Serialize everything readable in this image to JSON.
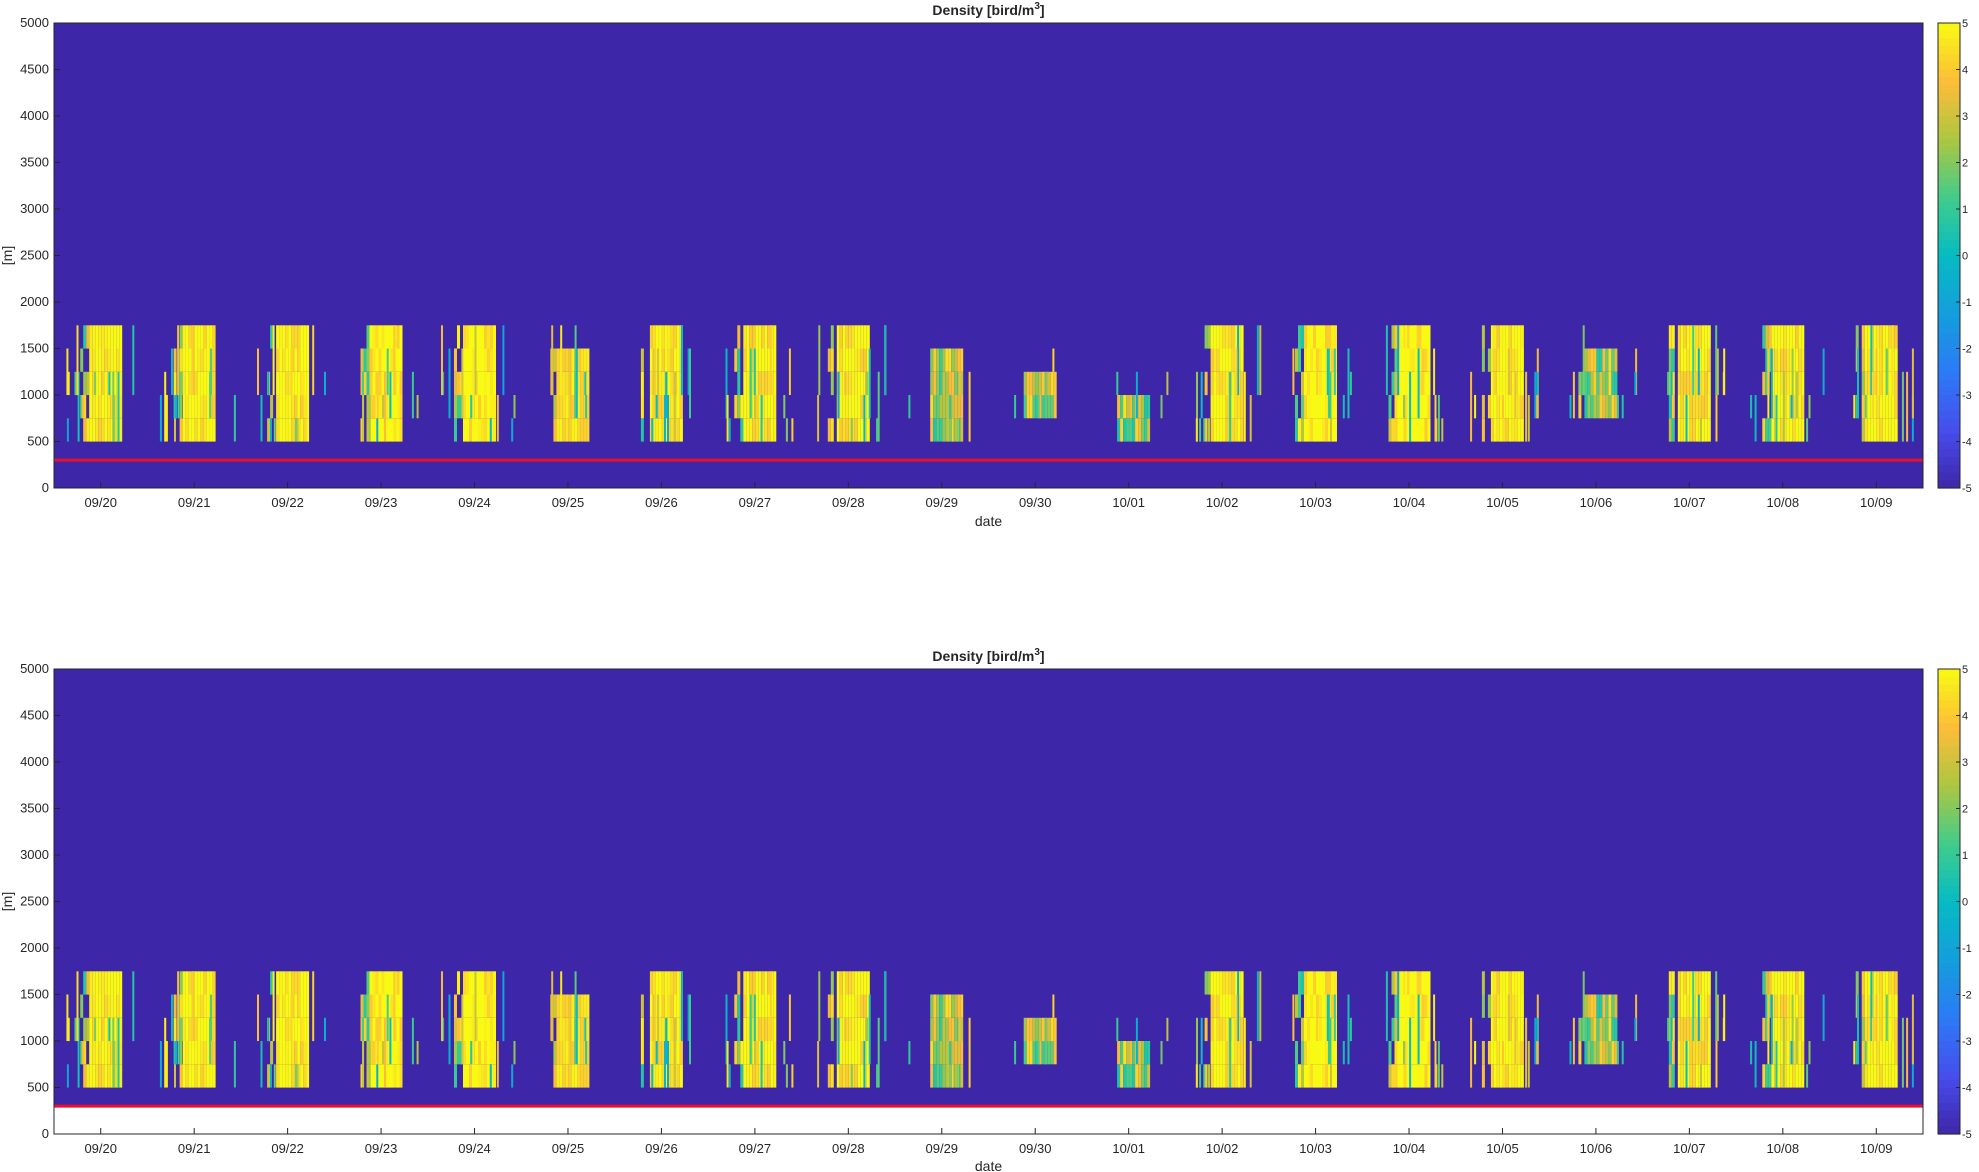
{
  "chart_data": [
    {
      "type": "heatmap",
      "title": "Density [bird/m",
      "title_sup": "3",
      "title_end": "]",
      "xlabel": "date",
      "ylabel": "[m]",
      "ylim": [
        0,
        5000
      ],
      "yticks": [
        0,
        500,
        1000,
        1500,
        2000,
        2500,
        3000,
        3500,
        4000,
        4500,
        5000
      ],
      "xlim": [
        "09/19 12:00",
        "10/09 12:00"
      ],
      "xticks": [
        "09/20",
        "09/21",
        "09/22",
        "09/23",
        "09/24",
        "09/25",
        "09/26",
        "09/27",
        "09/28",
        "09/29",
        "09/30",
        "10/01",
        "10/02",
        "10/03",
        "10/04",
        "10/05",
        "10/06",
        "10/07",
        "10/08",
        "10/09"
      ],
      "colorbar": {
        "range": [
          -5,
          5
        ],
        "ticks": [
          5,
          4,
          3,
          2,
          1,
          0,
          -1,
          -2,
          -3,
          -4,
          -5
        ],
        "colormap": "parula",
        "background_color": "#3e26a8"
      },
      "reference_line": {
        "altitude": 300,
        "color": "#e8112d"
      },
      "grid": false,
      "bottom_gap_white": false,
      "nightly_density": [
        {
          "date": "09/19",
          "intensity": 0.95,
          "top": 1750,
          "bottom": 500
        },
        {
          "date": "09/20",
          "intensity": 0.95,
          "top": 1750,
          "bottom": 500
        },
        {
          "date": "09/21",
          "intensity": 0.95,
          "top": 1750,
          "bottom": 500
        },
        {
          "date": "09/22",
          "intensity": 0.9,
          "top": 1750,
          "bottom": 500
        },
        {
          "date": "09/23",
          "intensity": 0.9,
          "top": 1750,
          "bottom": 500
        },
        {
          "date": "09/24",
          "intensity": 0.5,
          "top": 1500,
          "bottom": 500
        },
        {
          "date": "09/25",
          "intensity": 0.85,
          "top": 1750,
          "bottom": 500
        },
        {
          "date": "09/26",
          "intensity": 0.85,
          "top": 1750,
          "bottom": 500
        },
        {
          "date": "09/27",
          "intensity": 0.95,
          "top": 1750,
          "bottom": 500
        },
        {
          "date": "09/28",
          "intensity": 0.3,
          "top": 1500,
          "bottom": 500
        },
        {
          "date": "09/29",
          "intensity": 0.1,
          "top": 1250,
          "bottom": 750
        },
        {
          "date": "09/30",
          "intensity": 0.15,
          "top": 1000,
          "bottom": 500
        },
        {
          "date": "10/01",
          "intensity": 0.95,
          "top": 1750,
          "bottom": 500
        },
        {
          "date": "10/02",
          "intensity": 1.0,
          "top": 1750,
          "bottom": 500
        },
        {
          "date": "10/03",
          "intensity": 1.0,
          "top": 1750,
          "bottom": 500
        },
        {
          "date": "10/04",
          "intensity": 1.0,
          "top": 1750,
          "bottom": 500
        },
        {
          "date": "10/05",
          "intensity": 0.4,
          "top": 1500,
          "bottom": 750
        },
        {
          "date": "10/06",
          "intensity": 0.9,
          "top": 1750,
          "bottom": 500
        },
        {
          "date": "10/07",
          "intensity": 0.95,
          "top": 1750,
          "bottom": 500
        },
        {
          "date": "10/08",
          "intensity": 0.95,
          "top": 1750,
          "bottom": 500
        }
      ]
    },
    {
      "type": "heatmap",
      "title": "Density [bird/m",
      "title_sup": "3",
      "title_end": "]",
      "xlabel": "date",
      "ylabel": "[m]",
      "ylim": [
        0,
        5000
      ],
      "yticks": [
        0,
        500,
        1000,
        1500,
        2000,
        2500,
        3000,
        3500,
        4000,
        4500,
        5000
      ],
      "xlim": [
        "09/19 12:00",
        "10/09 12:00"
      ],
      "xticks": [
        "09/20",
        "09/21",
        "09/22",
        "09/23",
        "09/24",
        "09/25",
        "09/26",
        "09/27",
        "09/28",
        "09/29",
        "09/30",
        "10/01",
        "10/02",
        "10/03",
        "10/04",
        "10/05",
        "10/06",
        "10/07",
        "10/08",
        "10/09"
      ],
      "colorbar": {
        "range": [
          -5,
          5
        ],
        "ticks": [
          5,
          4,
          3,
          2,
          1,
          0,
          -1,
          -2,
          -3,
          -4,
          -5
        ],
        "colormap": "parula",
        "background_color": "#3e26a8"
      },
      "reference_line": {
        "altitude": 300,
        "color": "#e8112d"
      },
      "grid": false,
      "bottom_gap_white": true,
      "nightly_density": [
        {
          "date": "09/19",
          "intensity": 0.95,
          "top": 1750,
          "bottom": 500
        },
        {
          "date": "09/20",
          "intensity": 0.95,
          "top": 1750,
          "bottom": 500
        },
        {
          "date": "09/21",
          "intensity": 0.95,
          "top": 1750,
          "bottom": 500
        },
        {
          "date": "09/22",
          "intensity": 0.9,
          "top": 1750,
          "bottom": 500
        },
        {
          "date": "09/23",
          "intensity": 0.9,
          "top": 1750,
          "bottom": 500
        },
        {
          "date": "09/24",
          "intensity": 0.5,
          "top": 1500,
          "bottom": 500
        },
        {
          "date": "09/25",
          "intensity": 0.85,
          "top": 1750,
          "bottom": 500
        },
        {
          "date": "09/26",
          "intensity": 0.85,
          "top": 1750,
          "bottom": 500
        },
        {
          "date": "09/27",
          "intensity": 0.95,
          "top": 1750,
          "bottom": 500
        },
        {
          "date": "09/28",
          "intensity": 0.3,
          "top": 1500,
          "bottom": 500
        },
        {
          "date": "09/29",
          "intensity": 0.1,
          "top": 1250,
          "bottom": 750
        },
        {
          "date": "09/30",
          "intensity": 0.15,
          "top": 1000,
          "bottom": 500
        },
        {
          "date": "10/01",
          "intensity": 0.95,
          "top": 1750,
          "bottom": 500
        },
        {
          "date": "10/02",
          "intensity": 1.0,
          "top": 1750,
          "bottom": 500
        },
        {
          "date": "10/03",
          "intensity": 1.0,
          "top": 1750,
          "bottom": 500
        },
        {
          "date": "10/04",
          "intensity": 1.0,
          "top": 1750,
          "bottom": 500
        },
        {
          "date": "10/05",
          "intensity": 0.4,
          "top": 1500,
          "bottom": 750
        },
        {
          "date": "10/06",
          "intensity": 0.9,
          "top": 1750,
          "bottom": 500
        },
        {
          "date": "10/07",
          "intensity": 0.95,
          "top": 1750,
          "bottom": 500
        },
        {
          "date": "10/08",
          "intensity": 0.95,
          "top": 1750,
          "bottom": 500
        }
      ]
    }
  ]
}
